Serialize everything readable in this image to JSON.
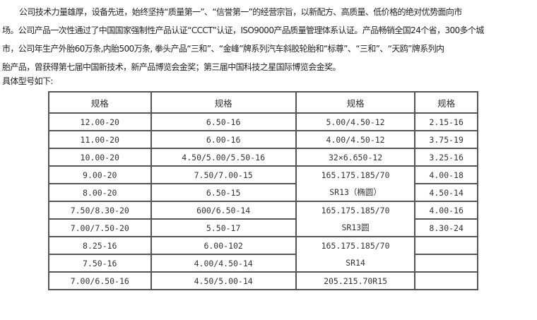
{
  "intro": {
    "lines": [
      "公司技术力量雄厚，设备先进，始终坚持“质量第一”、“信誉第一”的经营宗旨，以新配方、高质量、低价格的绝对优势面向市",
      "场。公司产品一次性通过了中国国家强制性产品认证“CCCT”认证，ISO9000产品质量管理体系认证。产品畅销全国24个省，300多个城",
      "市，公司年生产外胎60万条,内胎500万条, 拳头产品“三和”、“金峰”牌系列汽车斜胶轮胎和“标尊”、“三和”、“天鸥”牌系列内",
      "胎产品，曾获得第七届中国新技术，新产品博览会金奖；第三届中国科技之星国际博览会金奖。"
    ],
    "subheading": "具体型号如下:"
  },
  "table": {
    "headers": [
      "规格",
      "规格",
      "规格",
      "规格"
    ],
    "col1": [
      "12.00-20",
      "11.00-20",
      "10.00-20",
      "9.00-20",
      "8.00-20",
      "7.50/8.30-20",
      "7.00/7.50-20",
      "8.25-16",
      "7.50-16",
      "7.00/6.50-16"
    ],
    "col2": [
      "6.50-16",
      "6.00-16",
      "4.50/5.00/5.50-16",
      "7.50/7.00-15",
      "6.50-15",
      "600/6.50-14",
      "5.50-17",
      "6.00-102",
      "4.00/4.50-14",
      "4.50/5.00-14"
    ],
    "col3": {
      "r1": "5.00/4.50-12",
      "r2": "4.00/4.50-12",
      "r3": "32×6.650-12",
      "m1": [
        "165.175.185/70",
        "SR13（椭圆）"
      ],
      "m2": [
        "165.175.185/70",
        "SR13圆"
      ],
      "m3": [
        "165.175.185/70",
        "SR14"
      ],
      "r10": "205.215.70R15"
    },
    "col4": [
      "2.15-16",
      "3.75-19",
      "3.25-16",
      "4.00-18",
      "4.50-14",
      "4.00-16",
      "8.30-24",
      "",
      "",
      ""
    ]
  }
}
